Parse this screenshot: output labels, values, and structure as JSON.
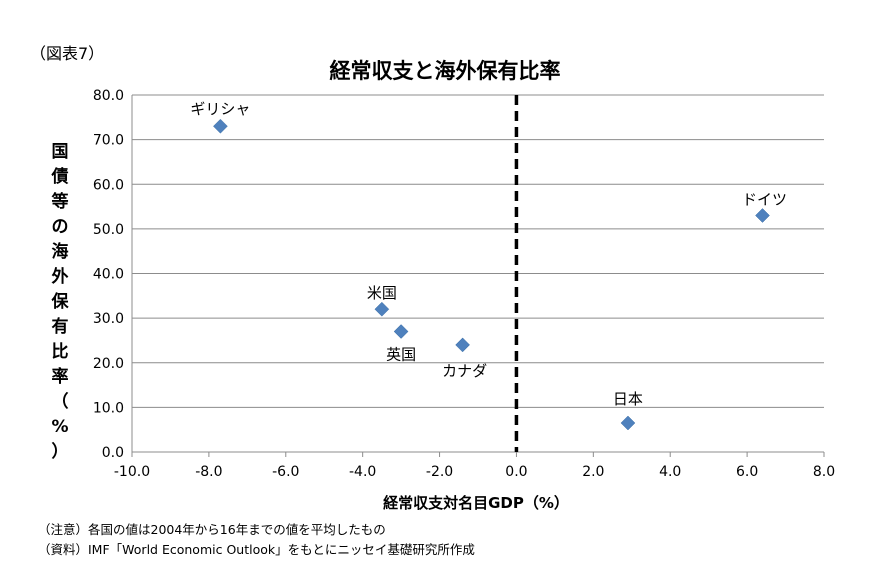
{
  "figure_label": "（図表7）",
  "chart_data": {
    "type": "scatter",
    "title": "経常収支と海外保有比率",
    "xlabel": "経常収支対名目GDP（%）",
    "ylabel": "国債等の海外保有比率（%）",
    "xlim": [
      -10,
      8
    ],
    "ylim": [
      0,
      80
    ],
    "x_ticks": [
      "-10.0",
      "-8.0",
      "-6.0",
      "-4.0",
      "-2.0",
      "0.0",
      "2.0",
      "4.0",
      "6.0",
      "8.0"
    ],
    "y_ticks": [
      "0.0",
      "10.0",
      "20.0",
      "30.0",
      "40.0",
      "50.0",
      "60.0",
      "70.0",
      "80.0"
    ],
    "grid": "horizontal",
    "reference_line": {
      "x": 0,
      "style": "dashed"
    },
    "marker": "diamond",
    "marker_color": "#4f81bd",
    "points": [
      {
        "label": "ギリシャ",
        "x": -7.7,
        "y": 73.0
      },
      {
        "label": "米国",
        "x": -3.5,
        "y": 32.0
      },
      {
        "label": "英国",
        "x": -3.0,
        "y": 27.0
      },
      {
        "label": "カナダ",
        "x": -1.4,
        "y": 24.0
      },
      {
        "label": "日本",
        "x": 2.9,
        "y": 6.5
      },
      {
        "label": "ドイツ",
        "x": 6.4,
        "y": 53.0
      }
    ]
  },
  "notes": [
    "（注意）各国の値は2004年から16年までの値を平均したもの",
    "（資料）IMF「World Economic Outlook」をもとにニッセイ基礎研究所作成"
  ]
}
